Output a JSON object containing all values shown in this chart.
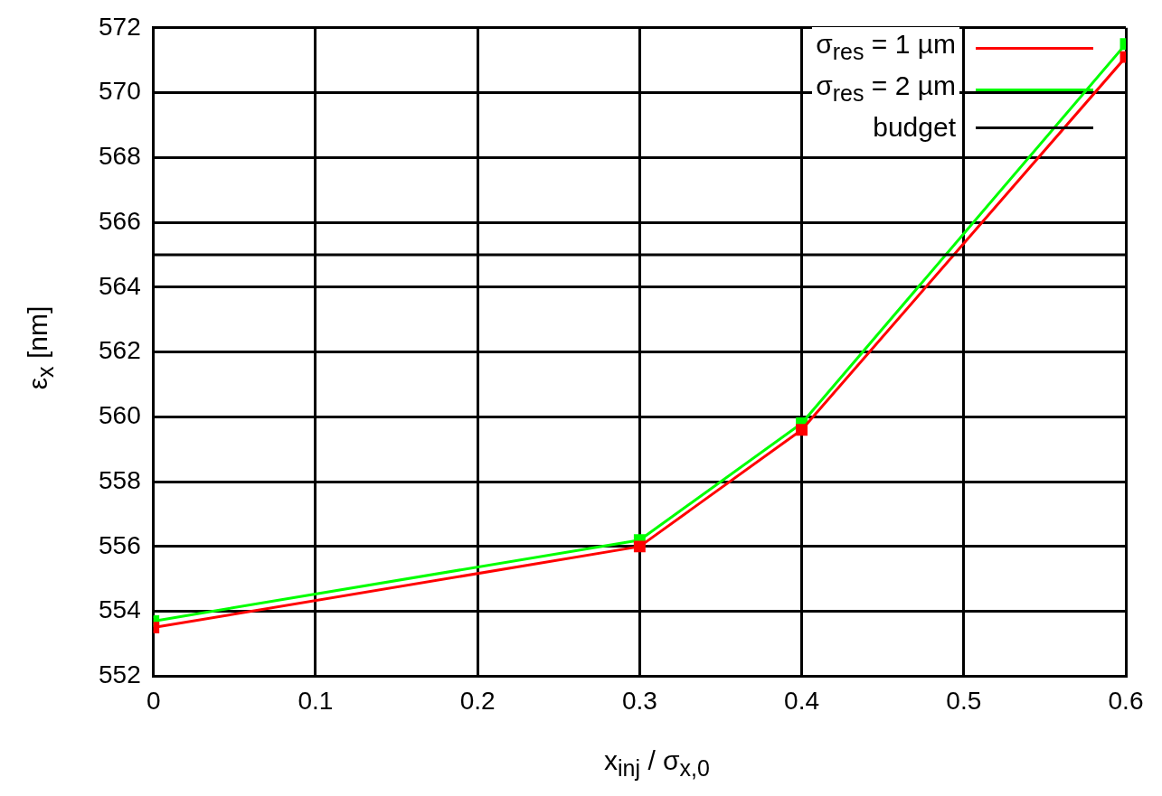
{
  "chart_data": {
    "type": "line",
    "xlabel": "x$_{inj}$ / σ$_{x,0}$",
    "ylabel": "ε$_{x}$ [nm]",
    "x": [
      0,
      0.3,
      0.4,
      0.6
    ],
    "series": [
      {
        "name": "σ$_{res}$ = 1 µm",
        "color": "#ff0000",
        "values": [
          553.5,
          556.0,
          559.6,
          571.1
        ]
      },
      {
        "name": "σ$_{res}$ = 2 µm",
        "color": "#00ff00",
        "values": [
          553.7,
          556.2,
          559.8,
          571.5
        ]
      }
    ],
    "ref_lines": [
      {
        "axis": "y",
        "value": 565,
        "label": "budget",
        "color": "#000000"
      }
    ],
    "xlim": [
      0,
      0.6
    ],
    "xticks": [
      0,
      0.1,
      0.2,
      0.3,
      0.4,
      0.5,
      0.6
    ],
    "ylim": [
      552,
      572
    ],
    "yticks": [
      552,
      554,
      556,
      558,
      560,
      562,
      564,
      566,
      568,
      570,
      572
    ],
    "grid": true,
    "legend": "top right",
    "marker": "square",
    "line_style": "solid"
  }
}
